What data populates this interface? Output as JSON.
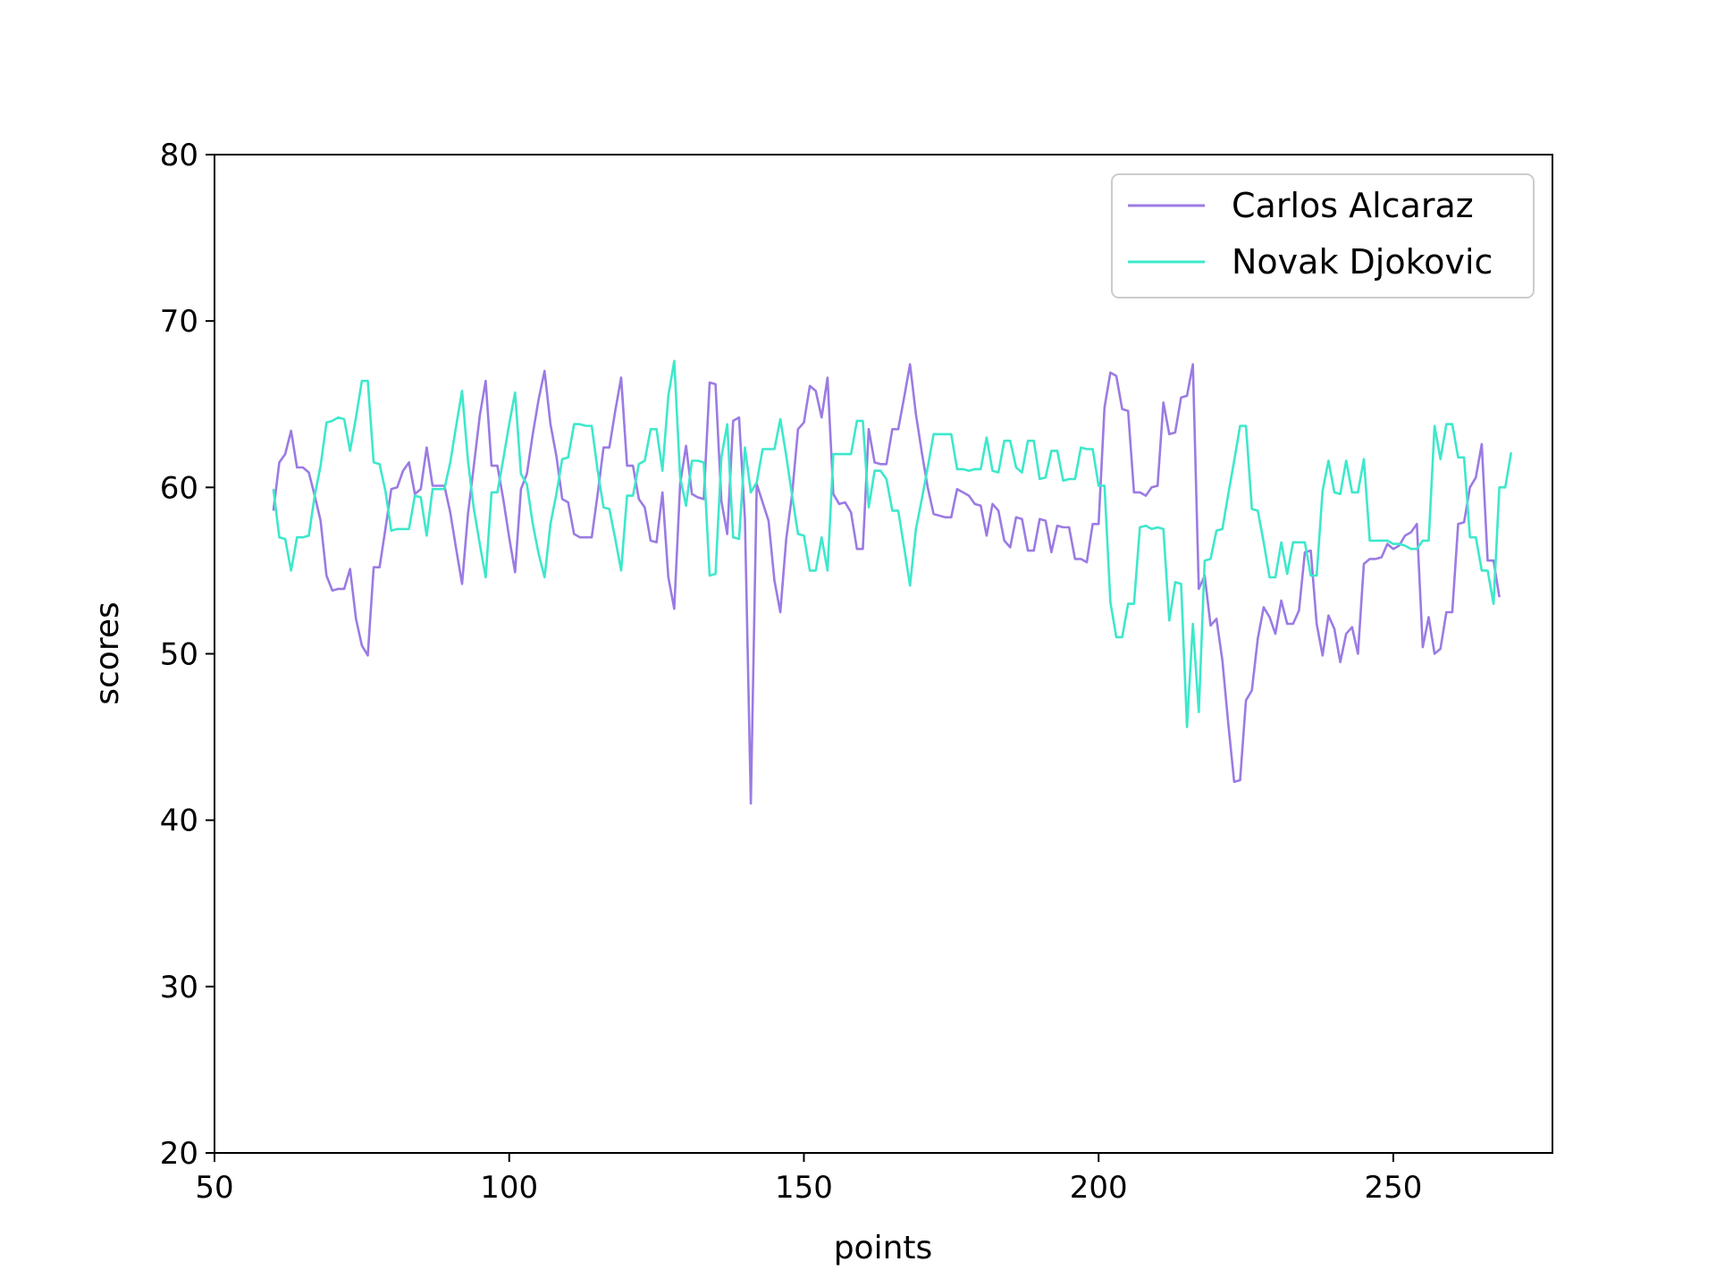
{
  "chart_data": {
    "type": "line",
    "xlabel": "points",
    "ylabel": "scores",
    "xlim": [
      50,
      277
    ],
    "ylim": [
      20,
      80
    ],
    "xticks": [
      50,
      100,
      150,
      200,
      250
    ],
    "yticks": [
      20,
      30,
      40,
      50,
      60,
      70,
      80
    ],
    "grid": false,
    "legend_position": "top-right",
    "x_start": 60,
    "series": [
      {
        "name": "Carlos Alcaraz",
        "color": "#9b7be3",
        "values": [
          58.6,
          61.5,
          62,
          63.4,
          61.2,
          61.2,
          60.9,
          59.5,
          58,
          54.7,
          53.8,
          53.9,
          53.9,
          55.1,
          52.1,
          50.5,
          49.9,
          55.2,
          55.2,
          57.5,
          59.9,
          60,
          61,
          61.5,
          59.6,
          59.9,
          62.4,
          60.1,
          60.1,
          60.1,
          58.5,
          56.3,
          54.2,
          58.4,
          61.3,
          64.3,
          66.4,
          61.3,
          61.3,
          59.3,
          57,
          54.9,
          59.9,
          60.8,
          63.2,
          65.3,
          67,
          63.8,
          61.9,
          59.3,
          59.1,
          57.2,
          57,
          57,
          57,
          59.6,
          62.4,
          62.4,
          64.6,
          66.6,
          61.3,
          61.3,
          59.3,
          58.8,
          56.8,
          56.7,
          59.7,
          54.6,
          52.7,
          60.2,
          62.5,
          59.6,
          59.4,
          59.3,
          66.3,
          66.2,
          59.2,
          57.2,
          64,
          64.2,
          58.1,
          41,
          60.2,
          59.1,
          58,
          54.4,
          52.5,
          56.9,
          59.6,
          63.5,
          63.9,
          66.1,
          65.8,
          64.2,
          66.6,
          59.6,
          59,
          59.1,
          58.5,
          56.3,
          56.3,
          63.5,
          61.5,
          61.4,
          61.4,
          63.5,
          63.5,
          65.4,
          67.4,
          64.4,
          62.1,
          60,
          58.4,
          58.3,
          58.2,
          58.2,
          59.9,
          59.7,
          59.5,
          59,
          58.9,
          57.1,
          59,
          58.6,
          56.8,
          56.4,
          58.2,
          58.1,
          56.2,
          56.2,
          58.1,
          58,
          56.1,
          57.7,
          57.6,
          57.6,
          55.7,
          55.7,
          55.5,
          57.8,
          57.8,
          64.8,
          66.9,
          66.7,
          64.7,
          64.6,
          59.7,
          59.7,
          59.5,
          60,
          60.1,
          65.1,
          63.2,
          63.3,
          65.4,
          65.5,
          67.4,
          53.9,
          54.7,
          51.7,
          52.1,
          49.6,
          45.8,
          42.3,
          42.4,
          47.2,
          47.8,
          50.9,
          52.8,
          52.2,
          51.2,
          53.2,
          51.8,
          51.8,
          52.6,
          56.1,
          56.2,
          51.8,
          49.9,
          52.3,
          51.5,
          49.5,
          51.2,
          51.6,
          50,
          55.4,
          55.7,
          55.7,
          55.8,
          56.6,
          56.3,
          56.5,
          57.1,
          57.3,
          57.8,
          50.4,
          52.2,
          50,
          50.3,
          52.5,
          52.5,
          57.8,
          57.9,
          60,
          60.6,
          62.6,
          55.6,
          55.6,
          53.4
        ]
      },
      {
        "name": "Novak Djokovic",
        "color": "#3de8cb",
        "values": [
          59.9,
          57,
          56.9,
          55,
          57,
          57,
          57.1,
          59.5,
          61.3,
          63.9,
          64,
          64.2,
          64.1,
          62.2,
          64.2,
          66.4,
          66.4,
          61.5,
          61.4,
          59.8,
          57.4,
          57.5,
          57.5,
          57.5,
          59.5,
          59.4,
          57.1,
          59.9,
          59.9,
          59.9,
          61.5,
          63.7,
          65.8,
          61.6,
          58.7,
          56.6,
          54.6,
          59.7,
          59.7,
          61.7,
          63.8,
          65.7,
          60.8,
          60.2,
          57.8,
          56,
          54.6,
          57.8,
          59.6,
          61.7,
          61.8,
          63.8,
          63.8,
          63.7,
          63.7,
          61,
          58.8,
          58.7,
          56.9,
          55,
          59.5,
          59.5,
          61.4,
          61.6,
          63.5,
          63.5,
          61,
          65.5,
          67.6,
          60.6,
          58.9,
          61.6,
          61.6,
          61.5,
          54.7,
          54.8,
          61.8,
          63.8,
          57,
          56.9,
          62.4,
          59.7,
          60.3,
          62.3,
          62.3,
          62.3,
          64.1,
          61.9,
          59.5,
          57.2,
          57.1,
          55,
          55,
          57,
          55,
          62,
          62,
          62,
          62,
          64,
          64,
          58.8,
          61,
          61,
          60.5,
          58.6,
          58.6,
          56.4,
          54.1,
          57.5,
          59.3,
          61.2,
          63.2,
          63.2,
          63.2,
          63.2,
          61.1,
          61.1,
          61,
          61.1,
          61.1,
          63,
          61,
          60.9,
          62.8,
          62.8,
          61.2,
          60.9,
          62.8,
          62.8,
          60.5,
          60.6,
          62.2,
          62.2,
          60.4,
          60.5,
          60.5,
          62.4,
          62.3,
          62.3,
          60.1,
          60.1,
          53.1,
          51,
          51,
          53,
          53,
          57.6,
          57.7,
          57.5,
          57.6,
          57.5,
          52,
          54.3,
          54.2,
          45.6,
          51.8,
          46.5,
          55.6,
          55.7,
          57.4,
          57.5,
          59.6,
          61.6,
          63.7,
          63.7,
          58.7,
          58.6,
          56.7,
          54.6,
          54.6,
          56.7,
          54.8,
          56.7,
          56.7,
          56.7,
          54.7,
          54.7,
          59.8,
          61.6,
          59.7,
          59.6,
          61.6,
          59.7,
          59.7,
          61.7,
          56.8,
          56.8,
          56.8,
          56.8,
          56.6,
          56.6,
          56.5,
          56.3,
          56.3,
          56.8,
          56.8,
          63.7,
          61.7,
          63.8,
          63.8,
          61.8,
          61.8,
          57,
          57,
          55,
          55,
          53,
          60,
          60,
          62.1
        ]
      }
    ]
  }
}
